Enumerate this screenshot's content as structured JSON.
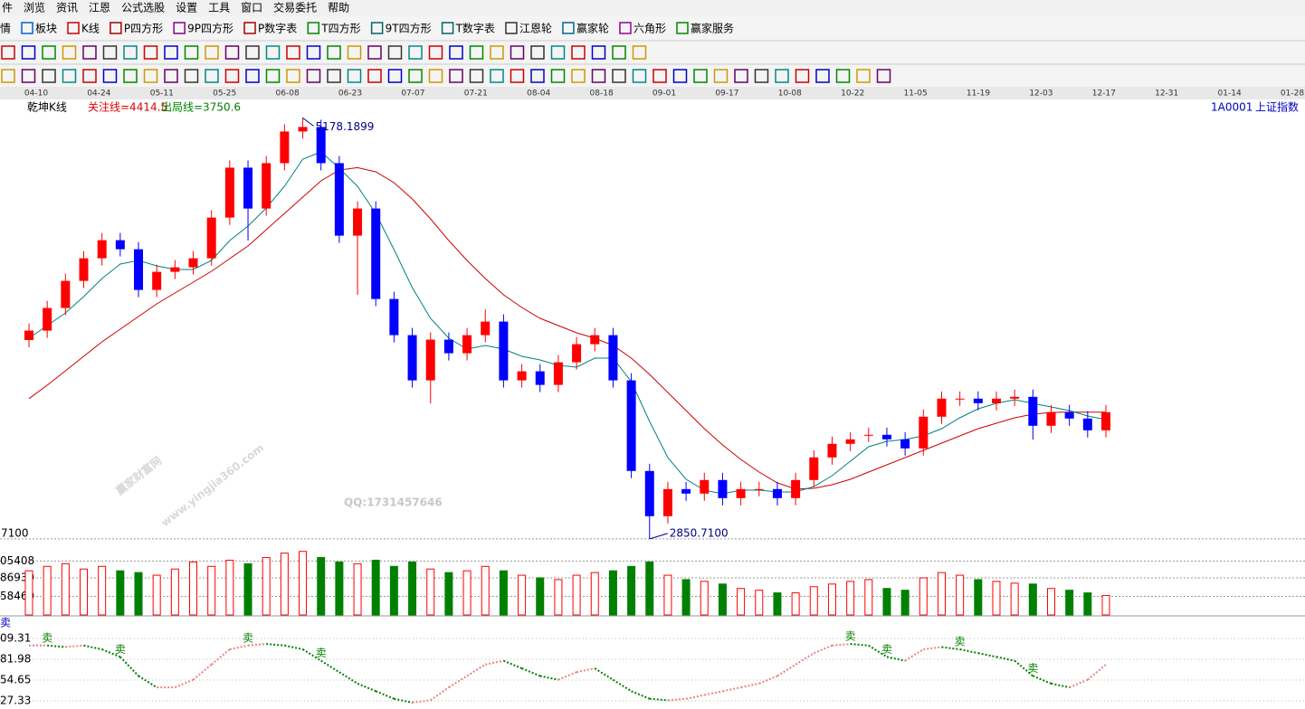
{
  "menu": [
    "件",
    "浏览",
    "资讯",
    "江恩",
    "公式选股",
    "设置",
    "工具",
    "窗口",
    "交易委托",
    "帮助"
  ],
  "toolbar": [
    "情",
    "板块",
    "K线",
    "P四方形",
    "9P四方形",
    "P数字表",
    "T四方形",
    "9T四方形",
    "T数字表",
    "江恩轮",
    "赢家轮",
    "六角形",
    "赢家服务"
  ],
  "dates": [
    "04-10",
    "04-24",
    "05-11",
    "05-25",
    "06-08",
    "06-23",
    "07-07",
    "07-21",
    "08-04",
    "08-18",
    "09-01",
    "09-17",
    "10-08",
    "10-22",
    "11-05",
    "11-19",
    "12-03",
    "12-17",
    "12-31",
    "01-14",
    "01-28"
  ],
  "header": {
    "name": "乾坤K线",
    "focus_line": "关注线=4414.5",
    "exit_line": "出局线=3750.6",
    "code": "1A0001",
    "index_name": "上证指数"
  },
  "watermark": {
    "site": "赢家财富网",
    "url": "www.yingjia360.com",
    "qq": "QQ:1731457646"
  },
  "chart_data": {
    "type": "candlestick",
    "open": [
      3950,
      4002,
      4127,
      4277,
      4402,
      4502,
      4452,
      4227,
      4327,
      4352,
      4402,
      4627,
      4903,
      4677,
      4928,
      5103,
      5128,
      4928,
      4527,
      4677,
      4177,
      3977,
      3727,
      3952,
      3877,
      3977,
      4052,
      3727,
      3777,
      3702,
      3827,
      3927,
      3977,
      3727,
      3226,
      2976,
      3126,
      3101,
      3176,
      3076,
      3126,
      3126,
      3076,
      3176,
      3301,
      3376,
      3426,
      3426,
      3401,
      3351,
      3526,
      3626,
      3626,
      3601,
      3626,
      3636,
      3476,
      3551,
      3516,
      3451
    ],
    "close": [
      4002,
      4127,
      4277,
      4402,
      4502,
      4452,
      4227,
      4327,
      4352,
      4402,
      4627,
      4903,
      4677,
      4928,
      5103,
      5128,
      4928,
      4527,
      4677,
      4177,
      3977,
      3727,
      3952,
      3877,
      3977,
      4052,
      3727,
      3777,
      3702,
      3827,
      3927,
      3977,
      3727,
      3226,
      2976,
      3126,
      3101,
      3176,
      3076,
      3126,
      3126,
      3076,
      3176,
      3301,
      3376,
      3401,
      3426,
      3401,
      3351,
      3526,
      3626,
      3626,
      3601,
      3626,
      3636,
      3476,
      3551,
      3516,
      3451,
      3551
    ],
    "high": [
      4042,
      4167,
      4317,
      4442,
      4542,
      4542,
      4492,
      4367,
      4392,
      4442,
      4667,
      4943,
      4943,
      4968,
      5143,
      5178.1899,
      5168,
      4968,
      4717,
      4717,
      4217,
      4017,
      3992,
      3992,
      4017,
      4120,
      4092,
      3817,
      3817,
      3867,
      3967,
      4017,
      4017,
      3767,
      3266,
      3166,
      3166,
      3216,
      3216,
      3166,
      3166,
      3166,
      3216,
      3341,
      3416,
      3441,
      3466,
      3466,
      3441,
      3566,
      3666,
      3666,
      3666,
      3666,
      3676,
      3676,
      3591,
      3591,
      3556,
      3591
    ],
    "low": [
      3910,
      3962,
      4087,
      4237,
      4362,
      4412,
      4187,
      4187,
      4287,
      4312,
      4362,
      4587,
      4500,
      4637,
      4888,
      5063,
      4888,
      4487,
      4200,
      4137,
      3937,
      3687,
      3600,
      3837,
      3837,
      3937,
      3687,
      3687,
      3662,
      3662,
      3787,
      3887,
      3687,
      3186,
      2850.71,
      2936,
      3061,
      3061,
      3036,
      3036,
      3086,
      3036,
      3036,
      3136,
      3261,
      3336,
      3386,
      3361,
      3311,
      3311,
      3486,
      3586,
      3561,
      3561,
      3586,
      3400,
      3436,
      3476,
      3411,
      3411
    ],
    "ma_short": [
      3960,
      4030,
      4100,
      4190,
      4290,
      4370,
      4390,
      4360,
      4340,
      4340,
      4390,
      4500,
      4580,
      4680,
      4800,
      4950,
      4990,
      4900,
      4800,
      4650,
      4450,
      4240,
      4070,
      3960,
      3900,
      3920,
      3900,
      3860,
      3840,
      3810,
      3800,
      3850,
      3850,
      3720,
      3500,
      3300,
      3180,
      3120,
      3100,
      3120,
      3120,
      3110,
      3110,
      3140,
      3200,
      3280,
      3360,
      3390,
      3400,
      3420,
      3460,
      3520,
      3570,
      3600,
      3620,
      3600,
      3580,
      3560,
      3530,
      3510
    ],
    "ma_long": [
      3626,
      3700,
      3780,
      3860,
      3940,
      4010,
      4080,
      4150,
      4210,
      4270,
      4330,
      4400,
      4470,
      4560,
      4650,
      4740,
      4830,
      4890,
      4903,
      4880,
      4820,
      4730,
      4620,
      4500,
      4390,
      4290,
      4200,
      4130,
      4070,
      4030,
      3990,
      3960,
      3920,
      3850,
      3760,
      3660,
      3560,
      3460,
      3370,
      3290,
      3220,
      3160,
      3126,
      3130,
      3150,
      3180,
      3220,
      3260,
      3300,
      3340,
      3380,
      3420,
      3460,
      3490,
      3520,
      3540,
      3550,
      3551,
      3551,
      3551
    ],
    "high_label": "5178.1899",
    "low_label": "2850.7100",
    "ylim": [
      2830,
      5280
    ],
    "yticks": [
      {
        "value": 2850.71,
        "label": "7100"
      }
    ],
    "volume": [
      50,
      55,
      58,
      52,
      55,
      50,
      48,
      45,
      52,
      60,
      55,
      62,
      58,
      65,
      70,
      72,
      65,
      60,
      58,
      62,
      55,
      60,
      52,
      48,
      50,
      55,
      50,
      45,
      42,
      40,
      45,
      48,
      50,
      55,
      60,
      45,
      40,
      38,
      35,
      30,
      28,
      25,
      25,
      32,
      35,
      38,
      40,
      30,
      28,
      42,
      48,
      45,
      40,
      38,
      36,
      35,
      30,
      28,
      25,
      22
    ],
    "vlim": [
      0,
      85
    ],
    "vticks": [
      {
        "value": 61,
        "label": "05408"
      },
      {
        "value": 42,
        "label": "86939"
      },
      {
        "value": 21,
        "label": "58469"
      }
    ],
    "indicator_name": "卖",
    "indicator": [
      100,
      100,
      98,
      100,
      95,
      85,
      60,
      45,
      45,
      55,
      75,
      95,
      100,
      102,
      100,
      95,
      80,
      65,
      50,
      40,
      30,
      25,
      28,
      45,
      60,
      75,
      80,
      70,
      60,
      55,
      65,
      70,
      55,
      40,
      30,
      28,
      30,
      35,
      40,
      45,
      50,
      60,
      75,
      90,
      100,
      102,
      100,
      85,
      80,
      95,
      98,
      95,
      90,
      85,
      80,
      60,
      50,
      45,
      55,
      75
    ],
    "sell_at": [
      null,
      "卖",
      null,
      null,
      null,
      "卖",
      null,
      null,
      null,
      null,
      null,
      null,
      "卖",
      null,
      null,
      null,
      "卖",
      null,
      null,
      null,
      null,
      null,
      null,
      null,
      null,
      null,
      null,
      null,
      null,
      null,
      null,
      null,
      null,
      null,
      null,
      null,
      null,
      null,
      null,
      null,
      null,
      null,
      null,
      null,
      null,
      "卖",
      null,
      "卖",
      null,
      null,
      null,
      "卖",
      null,
      null,
      null,
      "卖",
      null,
      null,
      null,
      null
    ],
    "ilim": [
      16.6,
      133
    ],
    "iticks": [
      {
        "value": 109.31,
        "label": "09.31"
      },
      {
        "value": 81.98,
        "label": "81.98"
      },
      {
        "value": 54.65,
        "label": "54.65"
      },
      {
        "value": 27.33,
        "label": "27.33"
      }
    ],
    "up_color": "#ff0000",
    "down_color": "#0000ff",
    "vol_down_color": "#008000",
    "ma_short_color": "#008080",
    "ma_long_color": "#cc0000"
  }
}
